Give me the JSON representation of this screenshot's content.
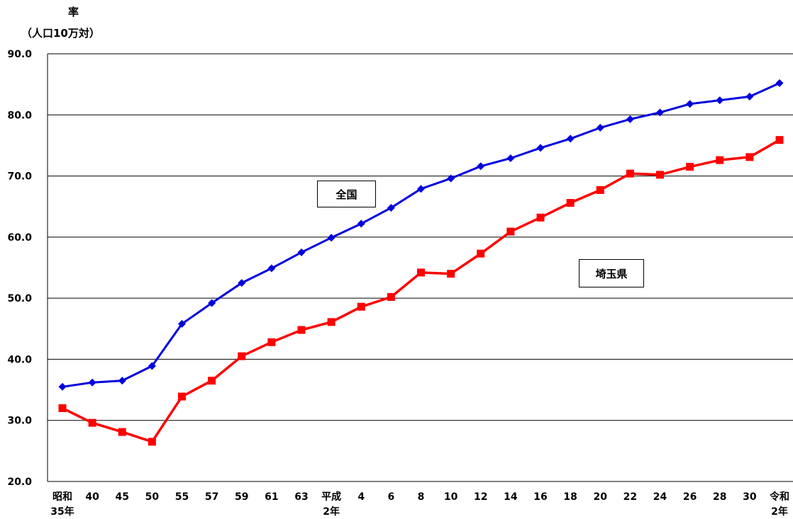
{
  "chart_data": {
    "type": "line",
    "ylabel_line1": "率",
    "ylabel_line2": "（人口10万対）",
    "ylim": [
      20,
      90
    ],
    "yticks": [
      "90.0",
      "80.0",
      "70.0",
      "60.0",
      "50.0",
      "40.0",
      "30.0",
      "20.0"
    ],
    "categories": [
      {
        "line1": "昭和",
        "line2": "35年"
      },
      {
        "line1": "40",
        "line2": ""
      },
      {
        "line1": "45",
        "line2": ""
      },
      {
        "line1": "50",
        "line2": ""
      },
      {
        "line1": "55",
        "line2": ""
      },
      {
        "line1": "57",
        "line2": ""
      },
      {
        "line1": "59",
        "line2": ""
      },
      {
        "line1": "61",
        "line2": ""
      },
      {
        "line1": "63",
        "line2": ""
      },
      {
        "line1": "平成",
        "line2": "2年"
      },
      {
        "line1": "4",
        "line2": ""
      },
      {
        "line1": "6",
        "line2": ""
      },
      {
        "line1": "8",
        "line2": ""
      },
      {
        "line1": "10",
        "line2": ""
      },
      {
        "line1": "12",
        "line2": ""
      },
      {
        "line1": "14",
        "line2": ""
      },
      {
        "line1": "16",
        "line2": ""
      },
      {
        "line1": "18",
        "line2": ""
      },
      {
        "line1": "20",
        "line2": ""
      },
      {
        "line1": "22",
        "line2": ""
      },
      {
        "line1": "24",
        "line2": ""
      },
      {
        "line1": "26",
        "line2": ""
      },
      {
        "line1": "28",
        "line2": ""
      },
      {
        "line1": "30",
        "line2": ""
      },
      {
        "line1": "令和",
        "line2": "2年"
      }
    ],
    "series": [
      {
        "name": "全国",
        "color": "#0000dd",
        "marker": "diamond",
        "values": [
          35.5,
          36.2,
          36.5,
          38.9,
          45.8,
          49.2,
          52.5,
          54.9,
          57.5,
          59.9,
          62.2,
          64.8,
          67.9,
          69.6,
          71.6,
          72.9,
          74.6,
          76.1,
          77.9,
          79.3,
          80.4,
          81.8,
          82.4,
          83.0,
          85.2
        ]
      },
      {
        "name": "埼玉県",
        "color": "#ff0000",
        "marker": "square",
        "values": [
          32.0,
          29.6,
          28.1,
          26.5,
          33.9,
          36.5,
          40.5,
          42.8,
          44.8,
          46.1,
          48.6,
          50.2,
          54.2,
          54.0,
          57.3,
          60.9,
          63.2,
          65.6,
          67.7,
          70.4,
          70.2,
          71.5,
          72.6,
          73.1,
          75.9
        ]
      }
    ],
    "grid": true
  }
}
